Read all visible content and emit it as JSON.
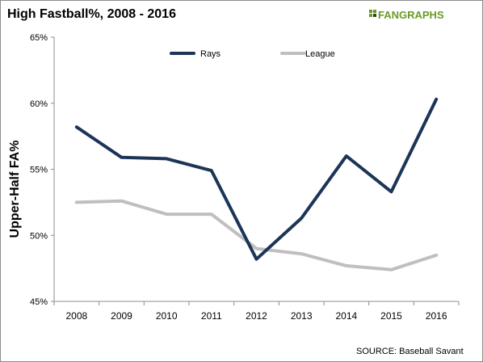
{
  "logo": {
    "text": "FANGRAPHS",
    "color": "#6a9a24"
  },
  "source_note": "SOURCE:  Baseball Savant",
  "chart_data": {
    "type": "line",
    "title": "High Fastball%, 2008 - 2016",
    "xlabel": "",
    "ylabel": "Upper-Half FA%",
    "categories": [
      "2008",
      "2009",
      "2010",
      "2011",
      "2012",
      "2013",
      "2014",
      "2015",
      "2016"
    ],
    "ylim": [
      45,
      65
    ],
    "yticks": [
      45,
      50,
      55,
      60,
      65
    ],
    "ytick_labels": [
      "45%",
      "50%",
      "55%",
      "60%",
      "65%"
    ],
    "grid": false,
    "legend": "top-center",
    "series": [
      {
        "name": "Rays",
        "color": "#1c3557",
        "values": [
          58.2,
          55.9,
          55.8,
          54.9,
          48.2,
          51.3,
          56.0,
          53.3,
          60.3
        ]
      },
      {
        "name": "League",
        "color": "#bfbfbf",
        "values": [
          52.5,
          52.6,
          51.6,
          51.6,
          49.0,
          48.6,
          47.7,
          47.4,
          48.5
        ]
      }
    ]
  }
}
